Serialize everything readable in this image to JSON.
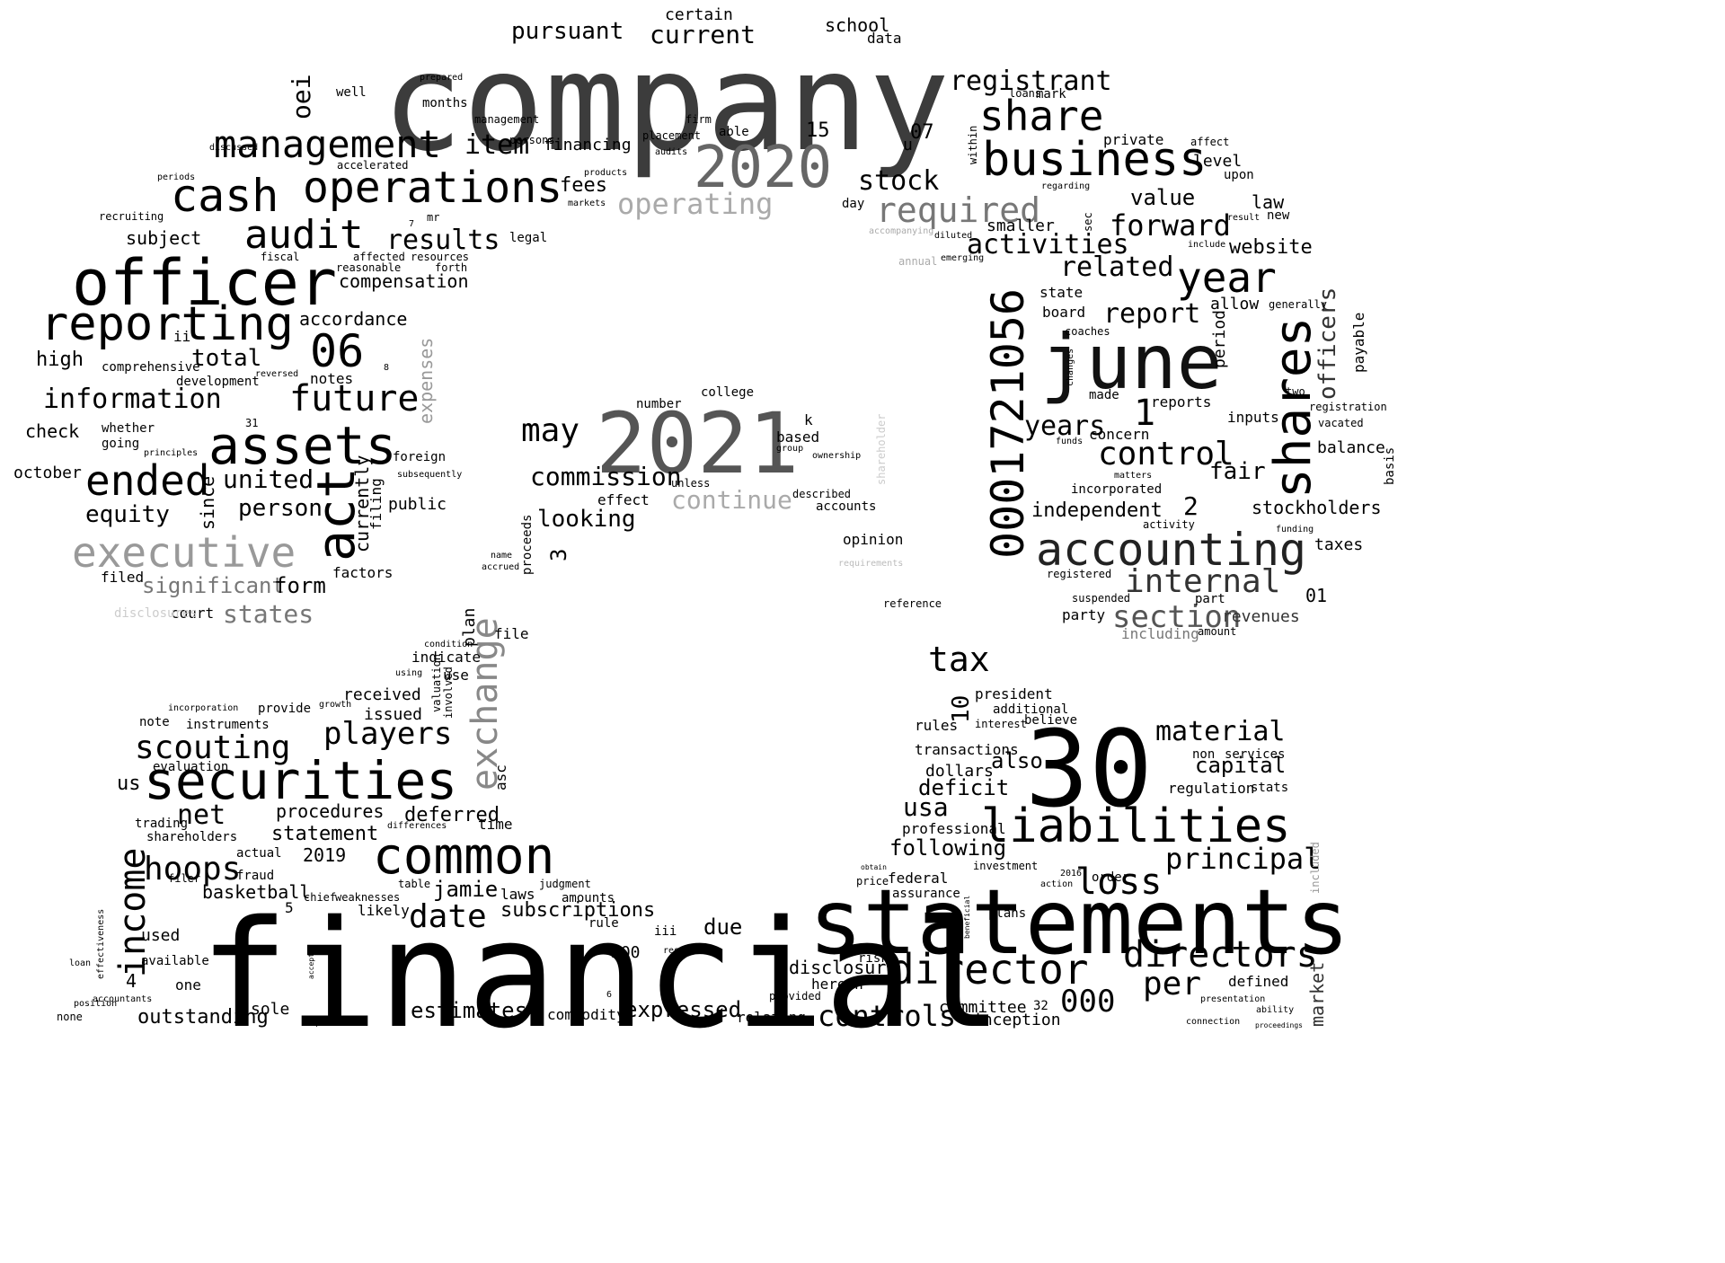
{
  "words": [
    {
      "t": "company",
      "c": "#3c3c3c"
    },
    {
      "t": "financial",
      "c": "#000000"
    },
    {
      "t": "statements",
      "c": "#000000"
    },
    {
      "t": "30",
      "c": "#000000"
    },
    {
      "t": "2021",
      "c": "#555555"
    },
    {
      "t": "2020",
      "c": "#666666"
    },
    {
      "t": "june",
      "c": "#111111"
    },
    {
      "t": "officer",
      "c": "#000000"
    },
    {
      "t": "securities",
      "c": "#000000"
    },
    {
      "t": "assets",
      "c": "#000000"
    },
    {
      "t": "reporting",
      "c": "#000000"
    },
    {
      "t": "operations",
      "c": "#000000"
    },
    {
      "t": "business",
      "c": "#000000"
    },
    {
      "t": "liabilities",
      "c": "#000000"
    },
    {
      "t": "accounting",
      "c": "#222222"
    },
    {
      "t": "common",
      "c": "#000000"
    },
    {
      "t": "director",
      "c": "#000000"
    },
    {
      "t": "management",
      "c": "#000000"
    },
    {
      "t": "cash",
      "c": "#000000"
    },
    {
      "t": "0001721056",
      "c": "#000000"
    },
    {
      "t": "shares",
      "c": "#000000"
    },
    {
      "t": "exchange",
      "c": "#888888"
    },
    {
      "t": "act",
      "c": "#000000"
    },
    {
      "t": "executive",
      "c": "#999999"
    },
    {
      "t": "ended",
      "c": "#000000"
    },
    {
      "t": "share",
      "c": "#000000"
    },
    {
      "t": "year",
      "c": "#000000"
    },
    {
      "t": "audit",
      "c": "#000000"
    },
    {
      "t": "06",
      "c": "#000000"
    },
    {
      "t": "future",
      "c": "#000000"
    },
    {
      "t": "information",
      "c": "#000000"
    },
    {
      "t": "scouting",
      "c": "#000000"
    },
    {
      "t": "players",
      "c": "#000000"
    },
    {
      "t": "directors",
      "c": "#000000"
    },
    {
      "t": "controls",
      "c": "#000000"
    },
    {
      "t": "loss",
      "c": "#000000"
    },
    {
      "t": "tax",
      "c": "#000000"
    },
    {
      "t": "control",
      "c": "#000000"
    },
    {
      "t": "hoops",
      "c": "#000000"
    },
    {
      "t": "income",
      "c": "#000000"
    },
    {
      "t": "date",
      "c": "#000000"
    },
    {
      "t": "may",
      "c": "#000000"
    },
    {
      "t": "internal",
      "c": "#333333"
    },
    {
      "t": "section",
      "c": "#555555"
    },
    {
      "t": "per",
      "c": "#000000"
    },
    {
      "t": "000",
      "c": "#000000"
    },
    {
      "t": "principal",
      "c": "#000000"
    },
    {
      "t": "material",
      "c": "#000000"
    },
    {
      "t": "required",
      "c": "#777777"
    },
    {
      "t": "operating",
      "c": "#aaaaaa"
    },
    {
      "t": "registrant",
      "c": "#000000"
    },
    {
      "t": "stock",
      "c": "#000000"
    },
    {
      "t": "results",
      "c": "#000000"
    },
    {
      "t": "item",
      "c": "#000000"
    },
    {
      "t": "forward",
      "c": "#000000"
    },
    {
      "t": "activities",
      "c": "#000000"
    },
    {
      "t": "related",
      "c": "#000000"
    },
    {
      "t": "report",
      "c": "#000000"
    },
    {
      "t": "years",
      "c": "#000000"
    },
    {
      "t": "usa",
      "c": "#000000"
    },
    {
      "t": "net",
      "c": "#000000"
    },
    {
      "t": "commission",
      "c": "#000000"
    },
    {
      "t": "continue",
      "c": "#aaaaaa"
    },
    {
      "t": "looking",
      "c": "#000000"
    },
    {
      "t": "united",
      "c": "#000000"
    },
    {
      "t": "equity",
      "c": "#000000"
    },
    {
      "t": "person",
      "c": "#000000"
    },
    {
      "t": "total",
      "c": "#000000"
    },
    {
      "t": "states",
      "c": "#777777"
    },
    {
      "t": "significant",
      "c": "#777777"
    },
    {
      "t": "form",
      "c": "#000000"
    },
    {
      "t": "officers",
      "c": "#333333"
    },
    {
      "t": "fair",
      "c": "#000000"
    },
    {
      "t": "capital",
      "c": "#000000"
    },
    {
      "t": "deficit",
      "c": "#000000"
    },
    {
      "t": "also",
      "c": "#000000"
    },
    {
      "t": "following",
      "c": "#000000"
    },
    {
      "t": "value",
      "c": "#000000"
    },
    {
      "t": "website",
      "c": "#000000"
    },
    {
      "t": "stockholders",
      "c": "#000000"
    },
    {
      "t": "independent",
      "c": "#000000"
    },
    {
      "t": "subscriptions",
      "c": "#000000"
    },
    {
      "t": "estimates",
      "c": "#000000"
    },
    {
      "t": "outstanding",
      "c": "#000000"
    },
    {
      "t": "expressed",
      "c": "#000000"
    },
    {
      "t": "due",
      "c": "#000000"
    },
    {
      "t": "disclosure",
      "c": "#000000"
    },
    {
      "t": "jamie",
      "c": "#000000"
    },
    {
      "t": "statement",
      "c": "#000000"
    },
    {
      "t": "procedures",
      "c": "#000000"
    },
    {
      "t": "deferred",
      "c": "#000000"
    },
    {
      "t": "basketball",
      "c": "#000000"
    },
    {
      "t": "compensation",
      "c": "#000000"
    },
    {
      "t": "accordance",
      "c": "#000000"
    },
    {
      "t": "fees",
      "c": "#000000"
    },
    {
      "t": "financing",
      "c": "#000000"
    },
    {
      "t": "pursuant",
      "c": "#000000"
    },
    {
      "t": "current",
      "c": "#000000"
    },
    {
      "t": "school",
      "c": "#000000"
    },
    {
      "t": "certain",
      "c": "#000000"
    },
    {
      "t": "data",
      "c": "#000000"
    },
    {
      "t": "subject",
      "c": "#000000"
    },
    {
      "t": "oei",
      "c": "#000000"
    },
    {
      "t": "high",
      "c": "#000000"
    },
    {
      "t": "check",
      "c": "#000000"
    },
    {
      "t": "october",
      "c": "#000000"
    },
    {
      "t": "comprehensive",
      "c": "#000000"
    },
    {
      "t": "development",
      "c": "#000000"
    },
    {
      "t": "notes",
      "c": "#000000"
    },
    {
      "t": "since",
      "c": "#000000"
    },
    {
      "t": "currently",
      "c": "#000000"
    },
    {
      "t": "filing",
      "c": "#000000"
    },
    {
      "t": "public",
      "c": "#000000"
    },
    {
      "t": "foreign",
      "c": "#000000"
    },
    {
      "t": "expenses",
      "c": "#999999"
    },
    {
      "t": "factors",
      "c": "#000000"
    },
    {
      "t": "court",
      "c": "#000000"
    },
    {
      "t": "filed",
      "c": "#000000"
    },
    {
      "t": "disclosures",
      "c": "#cccccc"
    },
    {
      "t": "plan",
      "c": "#000000"
    },
    {
      "t": "file",
      "c": "#000000"
    },
    {
      "t": "indicate",
      "c": "#000000"
    },
    {
      "t": "use",
      "c": "#000000"
    },
    {
      "t": "received",
      "c": "#000000"
    },
    {
      "t": "issued",
      "c": "#000000"
    },
    {
      "t": "us",
      "c": "#000000"
    },
    {
      "t": "asc",
      "c": "#000000"
    },
    {
      "t": "time",
      "c": "#000000"
    },
    {
      "t": "shareholders",
      "c": "#000000"
    },
    {
      "t": "trading",
      "c": "#000000"
    },
    {
      "t": "2019",
      "c": "#000000"
    },
    {
      "t": "actual",
      "c": "#000000"
    },
    {
      "t": "fraud",
      "c": "#000000"
    },
    {
      "t": "laws",
      "c": "#000000"
    },
    {
      "t": "amounts",
      "c": "#000000"
    },
    {
      "t": "likely",
      "c": "#000000"
    },
    {
      "t": "used",
      "c": "#000000"
    },
    {
      "t": "available",
      "c": "#000000"
    },
    {
      "t": "one",
      "c": "#000000"
    },
    {
      "t": "sole",
      "c": "#000000"
    },
    {
      "t": "commodity",
      "c": "#000000"
    },
    {
      "t": "relating",
      "c": "#000000"
    },
    {
      "t": "committee",
      "c": "#000000"
    },
    {
      "t": "inception",
      "c": "#000000"
    },
    {
      "t": "market",
      "c": "#333333"
    },
    {
      "t": "defined",
      "c": "#000000"
    },
    {
      "t": "revenues",
      "c": "#333333"
    },
    {
      "t": "party",
      "c": "#000000"
    },
    {
      "t": "including",
      "c": "#777777"
    },
    {
      "t": "taxes",
      "c": "#000000"
    },
    {
      "t": "balance",
      "c": "#000000"
    },
    {
      "t": "period",
      "c": "#000000"
    },
    {
      "t": "payable",
      "c": "#000000"
    },
    {
      "t": "allow",
      "c": "#000000"
    },
    {
      "t": "board",
      "c": "#000000"
    },
    {
      "t": "state",
      "c": "#000000"
    },
    {
      "t": "smaller",
      "c": "#000000"
    },
    {
      "t": "private",
      "c": "#000000"
    },
    {
      "t": "level",
      "c": "#000000"
    },
    {
      "t": "law",
      "c": "#000000"
    },
    {
      "t": "concern",
      "c": "#000000"
    },
    {
      "t": "reports",
      "c": "#000000"
    },
    {
      "t": "inputs",
      "c": "#000000"
    },
    {
      "t": "made",
      "c": "#000000"
    },
    {
      "t": "incorporated",
      "c": "#000000"
    },
    {
      "t": "regulation",
      "c": "#000000"
    },
    {
      "t": "dollars",
      "c": "#000000"
    },
    {
      "t": "rules",
      "c": "#000000"
    },
    {
      "t": "transactions",
      "c": "#000000"
    },
    {
      "t": "professional",
      "c": "#000000"
    },
    {
      "t": "federal",
      "c": "#000000"
    },
    {
      "t": "assurance",
      "c": "#000000"
    },
    {
      "t": "president",
      "c": "#000000"
    },
    {
      "t": "additional",
      "c": "#000000"
    },
    {
      "t": "believe",
      "c": "#000000"
    },
    {
      "t": "interest",
      "c": "#000000"
    },
    {
      "t": "non",
      "c": "#000000"
    },
    {
      "t": "services",
      "c": "#000000"
    },
    {
      "t": "stats",
      "c": "#000000"
    },
    {
      "t": "plans",
      "c": "#000000"
    },
    {
      "t": "investment",
      "c": "#000000"
    },
    {
      "t": "order",
      "c": "#000000"
    },
    {
      "t": "herein",
      "c": "#000000"
    },
    {
      "t": "risks",
      "c": "#000000"
    },
    {
      "t": "price",
      "c": "#000000"
    },
    {
      "t": "months",
      "c": "#000000"
    },
    {
      "t": "well",
      "c": "#000000"
    },
    {
      "t": "prepared",
      "c": "#000000"
    },
    {
      "t": "management",
      "c": "#000000"
    },
    {
      "t": "persons",
      "c": "#000000"
    },
    {
      "t": "accelerated",
      "c": "#000000"
    },
    {
      "t": "legal",
      "c": "#000000"
    },
    {
      "t": "affected",
      "c": "#000000"
    },
    {
      "t": "resources",
      "c": "#000000"
    },
    {
      "t": "forth",
      "c": "#000000"
    },
    {
      "t": "reasonable",
      "c": "#000000"
    },
    {
      "t": "fiscal",
      "c": "#000000"
    },
    {
      "t": "recruiting",
      "c": "#000000"
    },
    {
      "t": "periods",
      "c": "#000000"
    },
    {
      "t": "discussed",
      "c": "#000000"
    },
    {
      "t": "mr",
      "c": "#000000"
    },
    {
      "t": "able",
      "c": "#000000"
    },
    {
      "t": "placement",
      "c": "#000000"
    },
    {
      "t": "firm",
      "c": "#000000"
    },
    {
      "t": "audits",
      "c": "#000000"
    },
    {
      "t": "products",
      "c": "#000000"
    },
    {
      "t": "markets",
      "c": "#000000"
    },
    {
      "t": "day",
      "c": "#000000"
    },
    {
      "t": "mark",
      "c": "#000000"
    },
    {
      "t": "loans",
      "c": "#000000"
    },
    {
      "t": "affect",
      "c": "#000000"
    },
    {
      "t": "upon",
      "c": "#000000"
    },
    {
      "t": "new",
      "c": "#000000"
    },
    {
      "t": "result",
      "c": "#000000"
    },
    {
      "t": "include",
      "c": "#000000"
    },
    {
      "t": "regarding",
      "c": "#000000"
    },
    {
      "t": "sec",
      "c": "#000000"
    },
    {
      "t": "within",
      "c": "#000000"
    },
    {
      "t": "coaches",
      "c": "#000000"
    },
    {
      "t": "changes",
      "c": "#000000"
    },
    {
      "t": "funds",
      "c": "#000000"
    },
    {
      "t": "matters",
      "c": "#000000"
    },
    {
      "t": "activity",
      "c": "#000000"
    },
    {
      "t": "suspended",
      "c": "#000000"
    },
    {
      "t": "registered",
      "c": "#000000"
    },
    {
      "t": "amount",
      "c": "#000000"
    },
    {
      "t": "part",
      "c": "#000000"
    },
    {
      "t": "registration",
      "c": "#000000"
    },
    {
      "t": "vacated",
      "c": "#000000"
    },
    {
      "t": "basis",
      "c": "#000000"
    },
    {
      "t": "two",
      "c": "#000000"
    },
    {
      "t": "generally",
      "c": "#000000"
    },
    {
      "t": "funding",
      "c": "#000000"
    },
    {
      "t": "college",
      "c": "#000000"
    },
    {
      "t": "number",
      "c": "#000000"
    },
    {
      "t": "based",
      "c": "#000000"
    },
    {
      "t": "group",
      "c": "#000000"
    },
    {
      "t": "ownership",
      "c": "#000000"
    },
    {
      "t": "described",
      "c": "#000000"
    },
    {
      "t": "accounts",
      "c": "#000000"
    },
    {
      "t": "opinion",
      "c": "#000000"
    },
    {
      "t": "unless",
      "c": "#000000"
    },
    {
      "t": "effect",
      "c": "#000000"
    },
    {
      "t": "proceeds",
      "c": "#000000"
    },
    {
      "t": "accrued",
      "c": "#000000"
    },
    {
      "t": "name",
      "c": "#000000"
    },
    {
      "t": "subsequently",
      "c": "#000000"
    },
    {
      "t": "whether",
      "c": "#000000"
    },
    {
      "t": "going",
      "c": "#000000"
    },
    {
      "t": "principles",
      "c": "#000000"
    },
    {
      "t": "reversed",
      "c": "#000000"
    },
    {
      "t": "reference",
      "c": "#000000"
    },
    {
      "t": "requirements",
      "c": "#bbbbbb"
    },
    {
      "t": "shareholder",
      "c": "#cccccc"
    },
    {
      "t": "instruments",
      "c": "#000000"
    },
    {
      "t": "note",
      "c": "#000000"
    },
    {
      "t": "incorporation",
      "c": "#000000"
    },
    {
      "t": "provide",
      "c": "#000000"
    },
    {
      "t": "growth",
      "c": "#000000"
    },
    {
      "t": "evaluation",
      "c": "#000000"
    },
    {
      "t": "valuation",
      "c": "#000000"
    },
    {
      "t": "involved",
      "c": "#000000"
    },
    {
      "t": "using",
      "c": "#000000"
    },
    {
      "t": "condition",
      "c": "#000000"
    },
    {
      "t": "filer",
      "c": "#000000"
    },
    {
      "t": "chief",
      "c": "#000000"
    },
    {
      "t": "weaknesses",
      "c": "#000000"
    },
    {
      "t": "judgment",
      "c": "#000000"
    },
    {
      "t": "table",
      "c": "#000000"
    },
    {
      "t": "differences",
      "c": "#000000"
    },
    {
      "t": "rule",
      "c": "#000000"
    },
    {
      "t": "iii",
      "c": "#000000"
    },
    {
      "t": "respect",
      "c": "#000000"
    },
    {
      "t": "provided",
      "c": "#000000"
    },
    {
      "t": "potential",
      "c": "#000000"
    },
    {
      "t": "none",
      "c": "#000000"
    },
    {
      "t": "position",
      "c": "#000000"
    },
    {
      "t": "accountants",
      "c": "#000000"
    },
    {
      "t": "loan",
      "c": "#000000"
    },
    {
      "t": "effectiveness",
      "c": "#000000"
    },
    {
      "t": "accepted",
      "c": "#000000"
    },
    {
      "t": "connection",
      "c": "#000000"
    },
    {
      "t": "presentation",
      "c": "#000000"
    },
    {
      "t": "proceedings",
      "c": "#000000"
    },
    {
      "t": "action",
      "c": "#000000"
    },
    {
      "t": "beneficial",
      "c": "#000000"
    },
    {
      "t": "obtain",
      "c": "#000000"
    },
    {
      "t": "2016",
      "c": "#000000"
    },
    {
      "t": "included",
      "c": "#999999"
    },
    {
      "t": "ability",
      "c": "#000000"
    },
    {
      "t": "1",
      "c": "#000000"
    },
    {
      "t": "2",
      "c": "#000000"
    },
    {
      "t": "3",
      "c": "#000000"
    },
    {
      "t": "4",
      "c": "#000000"
    },
    {
      "t": "5",
      "c": "#000000"
    },
    {
      "t": "10",
      "c": "#000000"
    },
    {
      "t": "15",
      "c": "#000000"
    },
    {
      "t": "07",
      "c": "#000000"
    },
    {
      "t": "01",
      "c": "#000000"
    },
    {
      "t": "500",
      "c": "#000000"
    },
    {
      "t": "32",
      "c": "#000000"
    },
    {
      "t": "ii",
      "c": "#000000"
    },
    {
      "t": "k",
      "c": "#000000"
    },
    {
      "t": "u",
      "c": "#000000"
    },
    {
      "t": "6",
      "c": "#000000"
    },
    {
      "t": "8",
      "c": "#000000"
    },
    {
      "t": "7",
      "c": "#000000"
    },
    {
      "t": "31",
      "c": "#000000"
    },
    {
      "t": "accompanying",
      "c": "#aaaaaa"
    },
    {
      "t": "annual",
      "c": "#aaaaaa"
    },
    {
      "t": "emerging",
      "c": "#000000"
    },
    {
      "t": "diluted",
      "c": "#000000"
    }
  ]
}
